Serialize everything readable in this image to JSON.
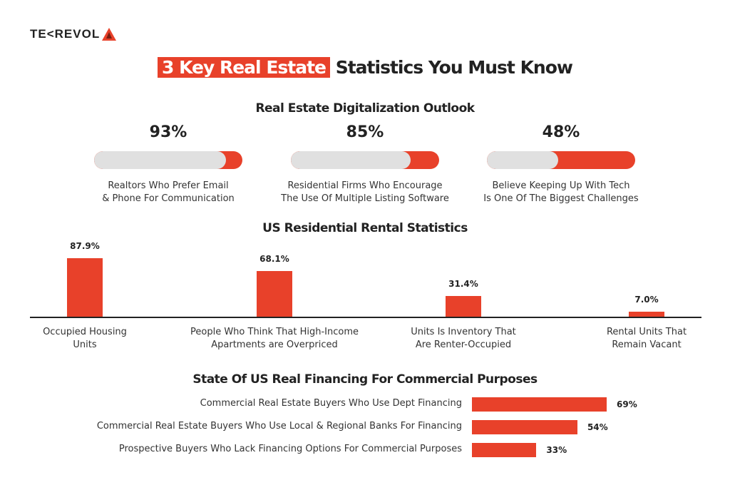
{
  "logo": {
    "text": "TE<REVOL",
    "color": "#e8412a"
  },
  "title": {
    "highlight": "3 Key Real Estate",
    "rest": " Statistics You Must Know"
  },
  "colors": {
    "accent": "#e8412a",
    "track": "#e0e0e0"
  },
  "chart_data": [
    {
      "type": "progress",
      "title": "Real Estate Digitalization Outlook",
      "items": [
        {
          "value": 93,
          "label": "93%",
          "caption1": "Realtors Who Prefer Email",
          "caption2": "& Phone For Communication"
        },
        {
          "value": 85,
          "label": "85%",
          "caption1": "Residential Firms Who Encourage",
          "caption2": "The Use Of Multiple Listing Software"
        },
        {
          "value": 48,
          "label": "48%",
          "caption1": "Believe Keeping Up With Tech",
          "caption2": "Is One Of The Biggest Challenges"
        }
      ]
    },
    {
      "type": "bar",
      "title": "US Residential Rental Statistics",
      "items": [
        {
          "value": 87.9,
          "label": "87.9%",
          "caption1": "Occupied Housing",
          "caption2": "Units"
        },
        {
          "value": 68.1,
          "label": "68.1%",
          "caption1": "People Who Think That High-Income",
          "caption2": "Apartments are Overpriced"
        },
        {
          "value": 31.4,
          "label": "31.4%",
          "caption1": "Units Is Inventory That",
          "caption2": "Are Renter-Occupied"
        },
        {
          "value": 7.0,
          "label": "7.0%",
          "caption1": "Rental Units That",
          "caption2": "Remain Vacant"
        }
      ]
    },
    {
      "type": "bar",
      "orientation": "horizontal",
      "title": "State Of US Real Financing For Commercial Purposes",
      "items": [
        {
          "value": 69,
          "label": "69%",
          "caption": "Commercial Real Estate Buyers Who Use Dept Financing"
        },
        {
          "value": 54,
          "label": "54%",
          "caption": "Commercial Real Estate Buyers Who Use Local & Regional Banks For Financing"
        },
        {
          "value": 33,
          "label": "33%",
          "caption": "Prospective Buyers Who Lack Financing Options For Commercial Purposes"
        }
      ]
    }
  ]
}
